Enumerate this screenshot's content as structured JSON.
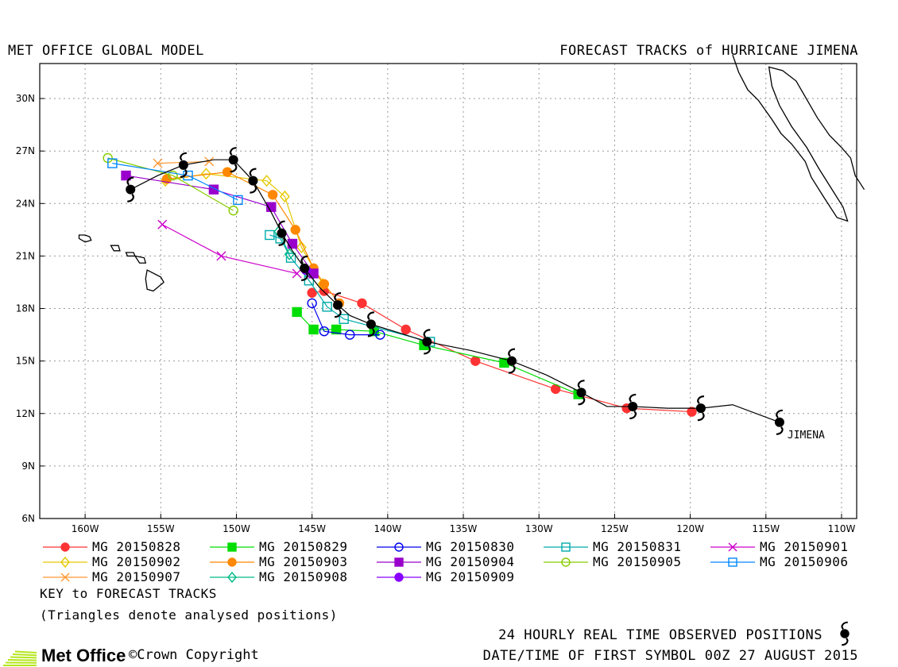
{
  "header": {
    "left_title": "MET OFFICE GLOBAL MODEL",
    "right_title": "FORECAST TRACKS of HURRICANE JIMENA"
  },
  "map": {
    "lon_range": [
      -163,
      -109
    ],
    "lat_range": [
      6,
      32
    ],
    "lon_ticks": [
      {
        "lon": -160,
        "label": "160W"
      },
      {
        "lon": -155,
        "label": "155W"
      },
      {
        "lon": -150,
        "label": "150W"
      },
      {
        "lon": -145,
        "label": "145W"
      },
      {
        "lon": -140,
        "label": "140W"
      },
      {
        "lon": -135,
        "label": "135W"
      },
      {
        "lon": -130,
        "label": "130W"
      },
      {
        "lon": -125,
        "label": "125W"
      },
      {
        "lon": -120,
        "label": "120W"
      },
      {
        "lon": -115,
        "label": "115W"
      },
      {
        "lon": -110,
        "label": "110W"
      }
    ],
    "lat_ticks": [
      {
        "lat": 6,
        "label": "6N"
      },
      {
        "lat": 9,
        "label": "9N"
      },
      {
        "lat": 12,
        "label": "12N"
      },
      {
        "lat": 15,
        "label": "15N"
      },
      {
        "lat": 18,
        "label": "18N"
      },
      {
        "lat": 21,
        "label": "21N"
      },
      {
        "lat": 24,
        "label": "24N"
      },
      {
        "lat": 27,
        "label": "27N"
      },
      {
        "lat": 30,
        "label": "30N"
      }
    ],
    "storm_label": "JIMENA",
    "observed_track": [
      [
        -114.1,
        11.5
      ],
      [
        -117.2,
        12.5
      ],
      [
        -119.3,
        12.3
      ],
      [
        -121.5,
        12.3
      ],
      [
        -123.8,
        12.4
      ],
      [
        -125.5,
        12.4
      ],
      [
        -127.2,
        13.2
      ],
      [
        -129.5,
        14.2
      ],
      [
        -131.8,
        15.0
      ],
      [
        -134.5,
        15.6
      ],
      [
        -137.4,
        16.1
      ],
      [
        -139.2,
        16.6
      ],
      [
        -141.1,
        17.1
      ],
      [
        -142.5,
        17.6
      ],
      [
        -143.3,
        18.2
      ],
      [
        -144.5,
        19.2
      ],
      [
        -145.5,
        20.3
      ],
      [
        -146.3,
        21.3
      ],
      [
        -147.0,
        22.3
      ],
      [
        -147.7,
        23.5
      ],
      [
        -148.9,
        25.3
      ],
      [
        -150.2,
        26.5
      ],
      [
        -151.5,
        26.5
      ],
      [
        -153.5,
        26.2
      ],
      [
        -155.2,
        25.6
      ],
      [
        -157.0,
        24.8
      ]
    ],
    "observed_daily": [
      [
        -114.1,
        11.5
      ],
      [
        -119.3,
        12.3
      ],
      [
        -123.8,
        12.4
      ],
      [
        -127.2,
        13.2
      ],
      [
        -131.8,
        15.0
      ],
      [
        -137.4,
        16.1
      ],
      [
        -141.1,
        17.1
      ],
      [
        -143.3,
        18.2
      ],
      [
        -145.5,
        20.3
      ],
      [
        -147.0,
        22.3
      ],
      [
        -148.9,
        25.3
      ],
      [
        -150.2,
        26.5
      ],
      [
        -153.5,
        26.2
      ],
      [
        -157.0,
        24.8
      ]
    ],
    "islands": [
      [
        [
          -160.4,
          22.2
        ],
        [
          -160.0,
          22.2
        ],
        [
          -159.7,
          22.1
        ],
        [
          -159.6,
          21.9
        ],
        [
          -160.0,
          21.8
        ],
        [
          -160.4,
          22.0
        ]
      ],
      [
        [
          -158.3,
          21.6
        ],
        [
          -157.8,
          21.6
        ],
        [
          -157.7,
          21.3
        ],
        [
          -158.1,
          21.3
        ]
      ],
      [
        [
          -157.3,
          21.2
        ],
        [
          -156.8,
          21.2
        ],
        [
          -156.7,
          21.0
        ],
        [
          -157.2,
          21.0
        ]
      ],
      [
        [
          -156.7,
          21.0
        ],
        [
          -156.1,
          20.9
        ],
        [
          -156.0,
          20.6
        ],
        [
          -156.4,
          20.6
        ]
      ],
      [
        [
          -155.9,
          20.2
        ],
        [
          -155.0,
          19.8
        ],
        [
          -154.8,
          19.5
        ],
        [
          -155.5,
          19.0
        ],
        [
          -155.9,
          19.1
        ],
        [
          -156.0,
          19.7
        ]
      ]
    ],
    "coastline": [
      [
        -117.2,
        32.5
      ],
      [
        -116.8,
        31.5
      ],
      [
        -116.2,
        30.5
      ],
      [
        -115.5,
        29.9
      ],
      [
        -114.6,
        28.8
      ],
      [
        -114.0,
        28.0
      ],
      [
        -113.3,
        27.4
      ],
      [
        -112.4,
        26.4
      ],
      [
        -112.0,
        25.5
      ],
      [
        -111.2,
        24.4
      ],
      [
        -110.3,
        23.2
      ],
      [
        -109.6,
        23.0
      ],
      [
        -109.9,
        23.8
      ],
      [
        -110.7,
        24.9
      ],
      [
        -111.5,
        26.0
      ],
      [
        -112.3,
        27.2
      ],
      [
        -113.3,
        28.4
      ],
      [
        -114.1,
        29.6
      ],
      [
        -114.6,
        30.7
      ],
      [
        -114.8,
        31.8
      ],
      [
        -113.9,
        31.6
      ],
      [
        -113.0,
        31.0
      ],
      [
        -112.2,
        29.8
      ],
      [
        -111.6,
        28.9
      ],
      [
        -110.8,
        27.9
      ],
      [
        -110.0,
        27.2
      ],
      [
        -109.4,
        26.6
      ],
      [
        -109.1,
        25.6
      ],
      [
        -108.5,
        24.8
      ]
    ]
  },
  "chart_data": {
    "type": "scatter",
    "series": [
      {
        "name": "MG 20150828",
        "color": "#ff3333",
        "marker": "filled-circle",
        "points": [
          [
            -124.2,
            12.3
          ],
          [
            -128.9,
            13.4
          ],
          [
            -134.2,
            15.0
          ],
          [
            -138.8,
            16.8
          ],
          [
            -141.7,
            18.3
          ],
          [
            -144.2,
            19.0
          ],
          [
            -145.0,
            18.9
          ],
          [
            -119.9,
            12.1
          ]
        ]
      },
      {
        "name": "MG 20150829",
        "color": "#00dd00",
        "marker": "filled-square",
        "points": [
          [
            -127.4,
            13.1
          ],
          [
            -132.3,
            14.9
          ],
          [
            -137.6,
            15.9
          ],
          [
            -140.9,
            16.7
          ],
          [
            -143.4,
            16.8
          ],
          [
            -144.9,
            16.8
          ],
          [
            -146.0,
            17.8
          ]
        ]
      },
      {
        "name": "MG 20150830",
        "color": "#0000ee",
        "marker": "open-circle",
        "points": [
          [
            -140.5,
            16.5
          ],
          [
            -142.5,
            16.5
          ],
          [
            -144.2,
            16.7
          ],
          [
            -145.0,
            18.3
          ]
        ]
      },
      {
        "name": "MG 20150831",
        "color": "#00aaaa",
        "marker": "open-square",
        "points": [
          [
            -137.2,
            16.1
          ],
          [
            -142.9,
            17.4
          ],
          [
            -144.0,
            18.1
          ],
          [
            -145.2,
            19.6
          ],
          [
            -146.4,
            20.9
          ],
          [
            -147.1,
            22.0
          ],
          [
            -147.8,
            22.2
          ]
        ]
      },
      {
        "name": "MG 20150901",
        "color": "#cc00cc",
        "marker": "x",
        "points": [
          [
            -146.0,
            20.0
          ],
          [
            -151.0,
            21.0
          ],
          [
            -154.9,
            22.8
          ]
        ]
      },
      {
        "name": "MG 20150902",
        "color": "#e6c800",
        "marker": "open-diamond",
        "points": [
          [
            -144.3,
            19.4
          ],
          [
            -145.7,
            21.5
          ],
          [
            -146.8,
            24.4
          ],
          [
            -148.0,
            25.3
          ],
          [
            -152.0,
            25.7
          ],
          [
            -154.7,
            25.3
          ]
        ]
      },
      {
        "name": "MG 20150903",
        "color": "#ff8800",
        "marker": "filled-circle",
        "points": [
          [
            -143.2,
            18.3
          ],
          [
            -144.2,
            19.4
          ],
          [
            -144.9,
            20.3
          ],
          [
            -146.1,
            22.5
          ],
          [
            -147.6,
            24.5
          ],
          [
            -150.6,
            25.8
          ],
          [
            -154.6,
            25.4
          ]
        ]
      },
      {
        "name": "MG 20150904",
        "color": "#9900cc",
        "marker": "filled-square",
        "points": [
          [
            -144.9,
            20.0
          ],
          [
            -146.3,
            21.7
          ],
          [
            -147.7,
            23.8
          ],
          [
            -151.5,
            24.8
          ],
          [
            -157.3,
            25.6
          ]
        ]
      },
      {
        "name": "MG 20150905",
        "color": "#88cc00",
        "marker": "open-circle",
        "points": [
          [
            -150.2,
            23.6
          ],
          [
            -154.2,
            25.6
          ],
          [
            -158.5,
            26.6
          ]
        ]
      },
      {
        "name": "MG 20150906",
        "color": "#0088ff",
        "marker": "open-square",
        "points": [
          [
            -149.9,
            24.2
          ],
          [
            -153.2,
            25.6
          ],
          [
            -158.2,
            26.3
          ]
        ]
      },
      {
        "name": "MG 20150907",
        "color": "#ff9933",
        "marker": "x",
        "points": [
          [
            -151.8,
            26.4
          ],
          [
            -155.2,
            26.3
          ]
        ]
      },
      {
        "name": "MG 20150908",
        "color": "#00bb88",
        "marker": "open-diamond",
        "points": [
          [
            -147.2,
            22.4
          ],
          [
            -146.5,
            21.1
          ]
        ]
      },
      {
        "name": "MG 20150909",
        "color": "#8800ff",
        "marker": "filled-circle",
        "points": [
          [
            -145.4,
            20.2
          ]
        ]
      }
    ]
  },
  "legend": {
    "items": [
      {
        "label": "MG 20150828",
        "color": "#ff3333",
        "marker": "filled-circle"
      },
      {
        "label": "MG 20150829",
        "color": "#00dd00",
        "marker": "filled-square"
      },
      {
        "label": "MG 20150830",
        "color": "#0000ee",
        "marker": "open-circle"
      },
      {
        "label": "MG 20150831",
        "color": "#00aaaa",
        "marker": "open-square"
      },
      {
        "label": "MG 20150901",
        "color": "#cc00cc",
        "marker": "x"
      },
      {
        "label": "MG 20150902",
        "color": "#e6c800",
        "marker": "open-diamond"
      },
      {
        "label": "MG 20150903",
        "color": "#ff8800",
        "marker": "filled-circle"
      },
      {
        "label": "MG 20150904",
        "color": "#9900cc",
        "marker": "filled-square"
      },
      {
        "label": "MG 20150905",
        "color": "#88cc00",
        "marker": "open-circle"
      },
      {
        "label": "MG 20150906",
        "color": "#0088ff",
        "marker": "open-square"
      },
      {
        "label": "MG 20150907",
        "color": "#ff9933",
        "marker": "x"
      },
      {
        "label": "MG 20150908",
        "color": "#00bb88",
        "marker": "open-diamond"
      },
      {
        "label": "MG 20150909",
        "color": "#8800ff",
        "marker": "filled-circle"
      }
    ],
    "key_title": "KEY to FORECAST TRACKS",
    "key_note": "(Triangles denote analysed positions)"
  },
  "footer": {
    "logo_text": "Met Office",
    "copyright": "©Crown Copyright",
    "observed_note": "24 HOURLY REAL TIME OBSERVED POSITIONS",
    "date_note": "DATE/TIME OF FIRST SYMBOL 00Z 27 AUGUST 2015",
    "logo_color": "#b5e61d"
  }
}
